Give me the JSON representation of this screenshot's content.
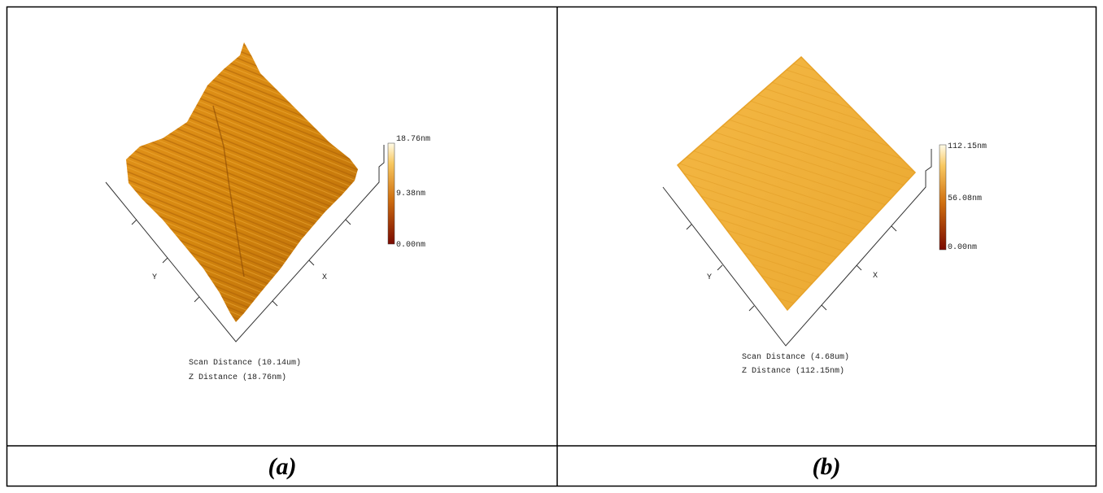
{
  "panels": [
    {
      "colorbar": {
        "max": "18.76nm",
        "mid": "9.38nm",
        "min": "0.00nm"
      },
      "x_axis": "X",
      "y_axis": "Y",
      "scan_distance": "Scan Distance (10.14um)",
      "z_distance": "Z Distance (18.76nm)",
      "caption": "(a)"
    },
    {
      "colorbar": {
        "max": "112.15nm",
        "mid": "56.08nm",
        "min": "0.00nm"
      },
      "x_axis": "X",
      "y_axis": "Y",
      "scan_distance": "Scan Distance (4.68um)",
      "z_distance": "Z Distance (112.15nm)",
      "caption": "(b)"
    }
  ]
}
